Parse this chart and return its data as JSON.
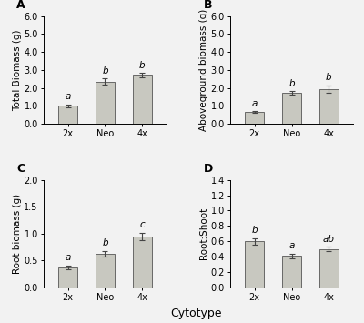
{
  "panels": [
    {
      "label": "A",
      "ylabel": "Total Biomass (g)",
      "categories": [
        "2x",
        "Neo",
        "4x"
      ],
      "values": [
        1.0,
        2.35,
        2.72
      ],
      "errors": [
        0.08,
        0.18,
        0.12
      ],
      "sig_labels": [
        "a",
        "b",
        "b"
      ],
      "ylim": [
        0,
        6.0
      ],
      "yticks": [
        0.0,
        1.0,
        2.0,
        3.0,
        4.0,
        5.0,
        6.0
      ]
    },
    {
      "label": "B",
      "ylabel": "Aboveground biomass (g)",
      "categories": [
        "2x",
        "Neo",
        "4x"
      ],
      "values": [
        0.65,
        1.72,
        1.95
      ],
      "errors": [
        0.06,
        0.1,
        0.2
      ],
      "sig_labels": [
        "a",
        "b",
        "b"
      ],
      "ylim": [
        0,
        6.0
      ],
      "yticks": [
        0.0,
        1.0,
        2.0,
        3.0,
        4.0,
        5.0,
        6.0
      ]
    },
    {
      "label": "C",
      "ylabel": "Root biomass (g)",
      "categories": [
        "2x",
        "Neo",
        "4x"
      ],
      "values": [
        0.37,
        0.63,
        0.95
      ],
      "errors": [
        0.04,
        0.05,
        0.07
      ],
      "sig_labels": [
        "a",
        "b",
        "c"
      ],
      "ylim": [
        0,
        2.0
      ],
      "yticks": [
        0.0,
        0.5,
        1.0,
        1.5,
        2.0
      ]
    },
    {
      "label": "D",
      "ylabel": "Root:Shoot",
      "categories": [
        "2x",
        "Neo",
        "4x"
      ],
      "values": [
        0.6,
        0.41,
        0.5
      ],
      "errors": [
        0.04,
        0.03,
        0.03
      ],
      "sig_labels": [
        "b",
        "a",
        "ab"
      ],
      "ylim": [
        0,
        1.4
      ],
      "yticks": [
        0.0,
        0.2,
        0.4,
        0.6,
        0.8,
        1.0,
        1.2,
        1.4
      ]
    }
  ],
  "bar_color": "#c8c8c0",
  "bar_edgecolor": "#555555",
  "bar_width": 0.5,
  "xlabel": "Cytotype",
  "label_fontsize": 7.5,
  "tick_fontsize": 7,
  "sig_fontsize": 7.5,
  "panel_label_fontsize": 9,
  "xlabel_fontsize": 9,
  "background_color": "#f2f2f2",
  "capsize": 2.5,
  "elinewidth": 0.8,
  "ecolor": "#444444"
}
